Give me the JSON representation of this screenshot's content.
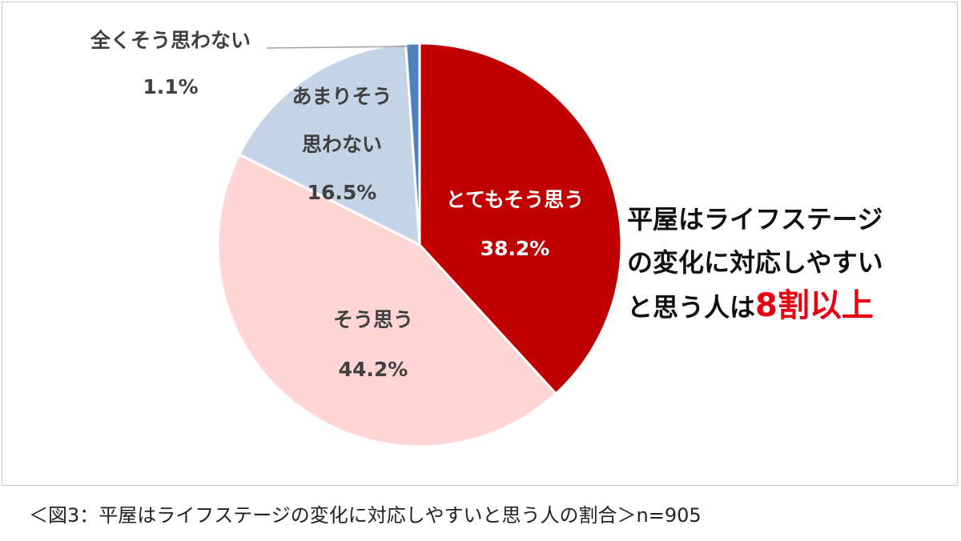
{
  "chart_data": {
    "type": "pie",
    "start": "12 o'clock, clockwise",
    "slices": [
      {
        "label": "とてもそう思う",
        "value": 38.2,
        "value_label": "38.2%",
        "color": "#c00000",
        "text_color": "#ffffff"
      },
      {
        "label": "そう思う",
        "value": 44.2,
        "value_label": "44.2%",
        "color": "#ffd5d5",
        "text_color": "#404040"
      },
      {
        "label_lines": [
          "あまりそう",
          "思わない"
        ],
        "value": 16.5,
        "value_label": "16.5%",
        "color": "#c5d3e6",
        "text_color": "#404040"
      },
      {
        "label": "全くそう思わない",
        "value": 1.1,
        "value_label": "1.1%",
        "color": "#4f81bd",
        "text_color": "#404040"
      }
    ]
  },
  "headline": {
    "line1": "平屋はライフステージ",
    "line2": "の変化に対応しやすい",
    "line3_prefix": "と思う人は",
    "line3_emphasis": "8割以上",
    "emphasis_color": "#e60012"
  },
  "caption": "＜図3：平屋はライフステージの変化に対応しやすいと思う人の割合＞n=905"
}
